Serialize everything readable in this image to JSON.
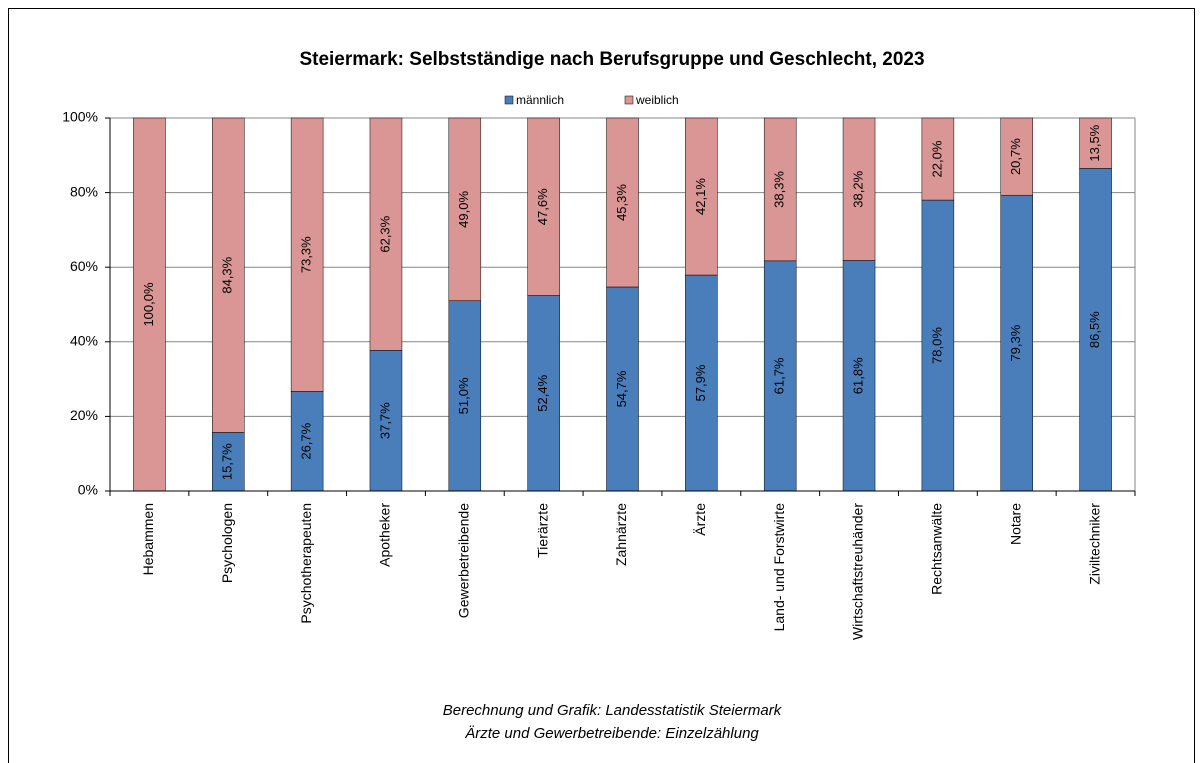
{
  "chart_data": {
    "type": "stacked_bar",
    "title": "Steiermark: Selbstständige nach Berufsgruppe und Geschlecht, 2023",
    "categories": [
      "Hebammen",
      "Psychologen",
      "Psychotherapeuten",
      "Apotheker",
      "Gewerbetreibende",
      "Tierärzte",
      "Zahnärzte",
      "Ärzte",
      "Land- und Forstwirte",
      "Wirtschaftstreuhänder",
      "Rechtsanwälte",
      "Notare",
      "Ziviltechniker"
    ],
    "series": [
      {
        "name": "männlich",
        "color": "#4a7ebb",
        "values": [
          0,
          15.7,
          26.7,
          37.7,
          51.0,
          52.4,
          54.7,
          57.9,
          61.7,
          61.8,
          78.0,
          79.3,
          86.5
        ],
        "value_labels": [
          null,
          "15,7%",
          "26,7%",
          "37,7%",
          "51,0%",
          "52,4%",
          "54,7%",
          "57,9%",
          "61,7%",
          "61,8%",
          "78,0%",
          "79,3%",
          "86,5%"
        ]
      },
      {
        "name": "weiblich",
        "color": "#d99694",
        "values": [
          100,
          84.3,
          73.3,
          62.3,
          49.0,
          47.6,
          45.3,
          42.1,
          38.3,
          38.2,
          22.0,
          20.7,
          13.5
        ],
        "value_labels": [
          "100,0%",
          "84,3%",
          "73,3%",
          "62,3%",
          "49,0%",
          "47,6%",
          "45,3%",
          "42,1%",
          "38,3%",
          "38,2%",
          "22,0%",
          "20,7%",
          "13,5%"
        ]
      }
    ],
    "ylim": [
      0,
      100
    ],
    "yticks": [
      {
        "value": 0,
        "label": "0%"
      },
      {
        "value": 20,
        "label": "20%"
      },
      {
        "value": 40,
        "label": "40%"
      },
      {
        "value": 60,
        "label": "60%"
      },
      {
        "value": 80,
        "label": "80%"
      },
      {
        "value": 100,
        "label": "100%"
      }
    ],
    "grid": true,
    "legend": "top",
    "notes": [
      "Berechnung und Grafik: Landesstatistik Steiermark",
      "Ärzte und Gewerbetreibende:   Einzelzählung"
    ]
  }
}
